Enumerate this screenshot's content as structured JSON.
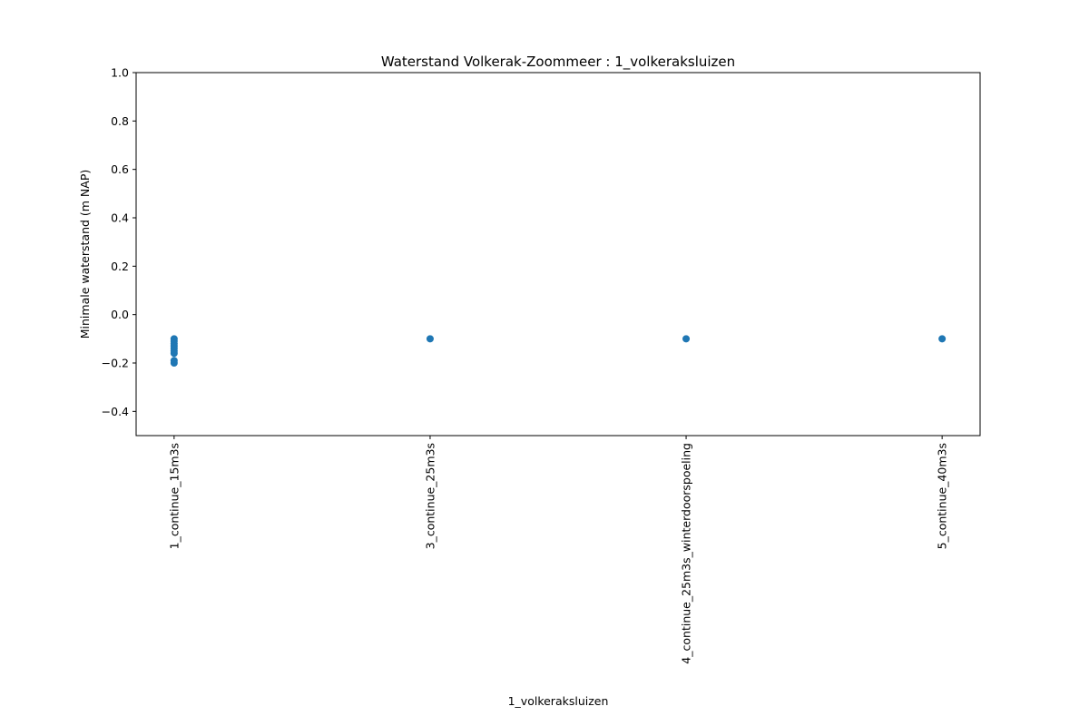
{
  "chart_data": {
    "type": "scatter",
    "title": "Waterstand Volkerak-Zoommeer : 1_volkeraksluizen",
    "xlabel": "1_volkeraksluizen",
    "ylabel": "Minimale waterstand (m NAP)",
    "categories": [
      "1_continue_15m3s",
      "3_continue_25m3s",
      "4_continue_25m3s_winterdoorspoeling",
      "5_continue_40m3s"
    ],
    "ylim": [
      -0.5,
      1.0
    ],
    "yticks": [
      -0.4,
      -0.2,
      0.0,
      0.2,
      0.4,
      0.6,
      0.8,
      1.0
    ],
    "ytick_labels": [
      "−0.4",
      "−0.2",
      "0.0",
      "0.2",
      "0.4",
      "0.6",
      "0.8",
      "1.0"
    ],
    "grid": false,
    "color": "#1f77b4",
    "points": [
      {
        "category": "1_continue_15m3s",
        "y": -0.1
      },
      {
        "category": "1_continue_15m3s",
        "y": -0.11
      },
      {
        "category": "1_continue_15m3s",
        "y": -0.12
      },
      {
        "category": "1_continue_15m3s",
        "y": -0.13
      },
      {
        "category": "1_continue_15m3s",
        "y": -0.14
      },
      {
        "category": "1_continue_15m3s",
        "y": -0.15
      },
      {
        "category": "1_continue_15m3s",
        "y": -0.16
      },
      {
        "category": "1_continue_15m3s",
        "y": -0.19
      },
      {
        "category": "1_continue_15m3s",
        "y": -0.2
      },
      {
        "category": "3_continue_25m3s",
        "y": -0.1
      },
      {
        "category": "4_continue_25m3s_winterdoorspoeling",
        "y": -0.1
      },
      {
        "category": "5_continue_40m3s",
        "y": -0.1
      }
    ]
  }
}
